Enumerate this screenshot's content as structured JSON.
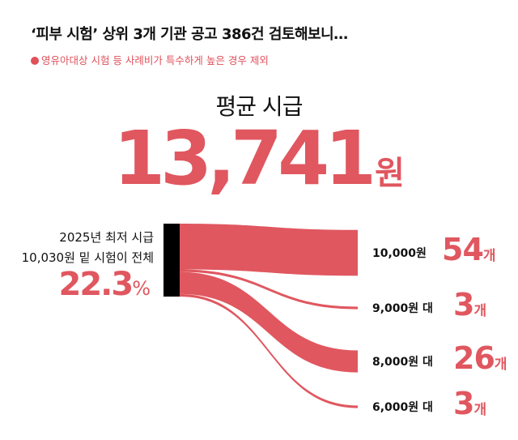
{
  "title": "‘피부 시험’ 상위 3개 기관 공고 386건 검토해보니…",
  "subtitle": "영유아대상 시험 등 사례비가 특수하게 높은 경우 제외",
  "average": {
    "label": "평균 시급",
    "value": "13,741",
    "unit": "원"
  },
  "left_label": {
    "line1": "2025년 최저 시급",
    "line2": "10,030원 밑 시험이 전체",
    "pct_value": "22.3",
    "pct_unit": "%"
  },
  "colors": {
    "accent": "#e0575f",
    "source_bar": "#000000"
  },
  "chart_data": {
    "type": "sankey",
    "title": "‘피부 시험’ 상위 3개 기관 공고 386건 검토해보니…",
    "categories": [
      "10,000원",
      "9,000원 대",
      "8,000원 대",
      "6,000원 대"
    ],
    "values": [
      54,
      3,
      26,
      3
    ],
    "value_labels": [
      "54",
      "3",
      "26",
      "3"
    ],
    "unit": "개"
  }
}
